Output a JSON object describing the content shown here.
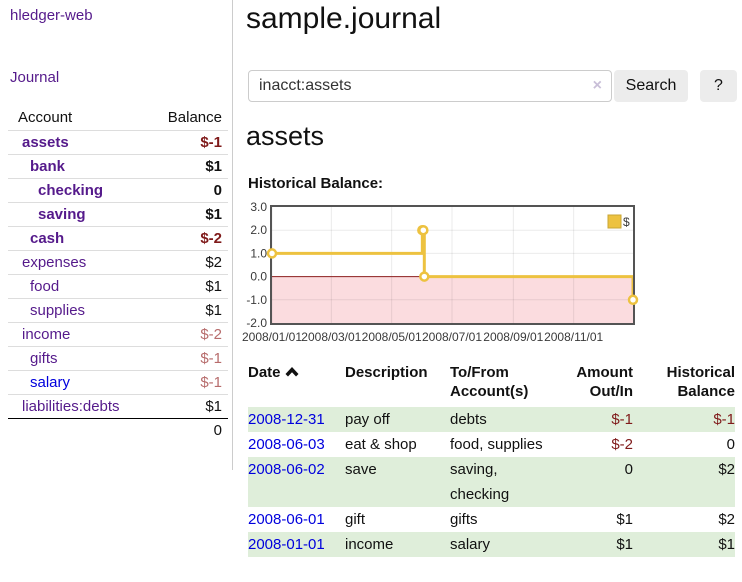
{
  "colors": {
    "link_purple": "#551a8b",
    "link_blue": "#0000dd",
    "negative_strong": "#7f1a1a",
    "negative_muted": "#b76c6c",
    "row_shade_green": "#dfeeda",
    "chart_gold": "#edc240",
    "chart_negative_region": "#fbdcdf",
    "chart_zero_line": "#8b1d1d",
    "chart_border": "#545454"
  },
  "sidebar": {
    "app_title": "hledger-web",
    "nav_journal": "Journal",
    "accounts_table": {
      "headers": {
        "account": "Account",
        "balance": "Balance"
      },
      "rows": [
        {
          "name": "assets",
          "level": 0,
          "bold": true,
          "link_color": "purple",
          "balance": "$-1",
          "balance_style": "neg-strong",
          "balance_bold": true
        },
        {
          "name": "bank",
          "level": 1,
          "bold": true,
          "link_color": "purple",
          "balance": "$1",
          "balance_style": "black",
          "balance_bold": true
        },
        {
          "name": "checking",
          "level": 2,
          "bold": true,
          "link_color": "purple",
          "balance": "0",
          "balance_style": "black",
          "balance_bold": true
        },
        {
          "name": "saving",
          "level": 2,
          "bold": true,
          "link_color": "purple",
          "balance": "$1",
          "balance_style": "black",
          "balance_bold": true
        },
        {
          "name": "cash",
          "level": 1,
          "bold": true,
          "link_color": "purple",
          "balance": "$-2",
          "balance_style": "neg-strong",
          "balance_bold": true
        },
        {
          "name": "expenses",
          "level": 0,
          "bold": false,
          "link_color": "purple",
          "balance": "$2",
          "balance_style": "black",
          "balance_bold": false
        },
        {
          "name": "food",
          "level": 1,
          "bold": false,
          "link_color": "purple",
          "balance": "$1",
          "balance_style": "black",
          "balance_bold": false
        },
        {
          "name": "supplies",
          "level": 1,
          "bold": false,
          "link_color": "purple",
          "balance": "$1",
          "balance_style": "black",
          "balance_bold": false
        },
        {
          "name": "income",
          "level": 0,
          "bold": false,
          "link_color": "purple",
          "balance": "$-2",
          "balance_style": "neg-muted",
          "balance_bold": false
        },
        {
          "name": "gifts",
          "level": 1,
          "bold": false,
          "link_color": "purple",
          "balance": "$-1",
          "balance_style": "neg-muted",
          "balance_bold": false
        },
        {
          "name": "salary",
          "level": 1,
          "bold": false,
          "link_color": "blue",
          "balance": "$-1",
          "balance_style": "neg-muted",
          "balance_bold": false
        },
        {
          "name": "liabilities:debts",
          "level": 0,
          "bold": false,
          "link_color": "purple",
          "balance": "$1",
          "balance_style": "black",
          "balance_bold": false
        }
      ],
      "total": "0"
    }
  },
  "main": {
    "title": "sample.journal",
    "search": {
      "value": "inacct:assets",
      "clear_icon": "×",
      "button_label": "Search",
      "help_label": "?"
    },
    "account_heading": "assets",
    "chart_title": "Historical Balance:"
  },
  "chart_data": {
    "type": "line",
    "subtype": "step-after",
    "title": "Historical Balance:",
    "x_start": "2008-01-01",
    "x_end": "2008-12-31",
    "ylim": [
      -2,
      3
    ],
    "grid": true,
    "legend_position": "top-right",
    "y_ticks": [
      "3.0",
      "2.0",
      "1.0",
      "0.0",
      "-1.0",
      "-2.0"
    ],
    "x_ticks": [
      {
        "date": "2008-01-01",
        "label": "2008/01/01"
      },
      {
        "date": "2008-03-01",
        "label": "2008/03/01"
      },
      {
        "date": "2008-05-01",
        "label": "2008/05/01"
      },
      {
        "date": "2008-07-01",
        "label": "2008/07/01"
      },
      {
        "date": "2008-09-01",
        "label": "2008/09/01"
      },
      {
        "date": "2008-11-01",
        "label": "2008/11/01"
      }
    ],
    "series": [
      {
        "name": "$",
        "color": "#edc240",
        "points": [
          [
            "2008-01-01",
            1
          ],
          [
            "2008-06-01",
            2
          ],
          [
            "2008-06-02",
            2
          ],
          [
            "2008-06-03",
            0
          ],
          [
            "2008-12-31",
            -1
          ]
        ]
      }
    ]
  },
  "register": {
    "headers": [
      {
        "line1": "Date",
        "line2": "",
        "align": "left",
        "sort": "asc"
      },
      {
        "line1": "Description",
        "line2": "",
        "align": "left"
      },
      {
        "line1": "To/From",
        "line2": "Account(s)",
        "align": "left"
      },
      {
        "line1": "Amount",
        "line2": "Out/In",
        "align": "right"
      },
      {
        "line1": "Historical",
        "line2": "Balance",
        "align": "right"
      }
    ],
    "rows": [
      {
        "date": "2008-12-31",
        "description": "pay off",
        "accounts": "debts",
        "amount": "$-1",
        "amount_negative": true,
        "balance": "$-1",
        "balance_negative": true,
        "shaded": true
      },
      {
        "date": "2008-06-03",
        "description": "eat & shop",
        "accounts": "food, supplies",
        "amount": "$-2",
        "amount_negative": true,
        "balance": "0",
        "balance_negative": false,
        "shaded": false
      },
      {
        "date": "2008-06-02",
        "description": "save",
        "accounts": "saving, checking",
        "amount": "0",
        "amount_negative": false,
        "balance": "$2",
        "balance_negative": false,
        "shaded": true
      },
      {
        "date": "2008-06-01",
        "description": "gift",
        "accounts": "gifts",
        "amount": "$1",
        "amount_negative": false,
        "balance": "$2",
        "balance_negative": false,
        "shaded": false
      },
      {
        "date": "2008-01-01",
        "description": "income",
        "accounts": "salary",
        "amount": "$1",
        "amount_negative": false,
        "balance": "$1",
        "balance_negative": false,
        "shaded": true
      }
    ]
  }
}
